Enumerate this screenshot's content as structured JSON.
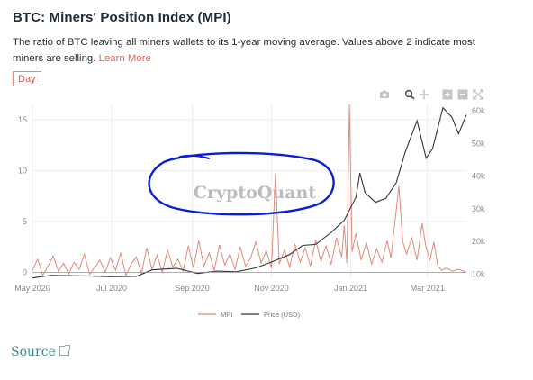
{
  "header": {
    "title": "BTC: Miners' Position Index (MPI)",
    "description": "The ratio of BTC leaving all miners wallets to its 1-year moving average. Values above 2 indicate most miners are selling.",
    "learn_more": "Learn More",
    "interval_button": "Day"
  },
  "toolbar": {
    "icons": [
      "camera-icon",
      "zoom-icon",
      "pan-icon",
      "zoom-in-icon",
      "zoom-out-icon",
      "reset-icon"
    ]
  },
  "watermark": "CryptoQuant",
  "source_link": "Source",
  "colors": {
    "mpi": "#e08a7c",
    "price": "#333333",
    "annotation": "#0a1fd4",
    "grid": "#ededed",
    "axis_text": "#888888"
  },
  "chart_data": {
    "type": "line",
    "title": "BTC: Miners' Position Index (MPI)",
    "x_range": [
      "2020-05-01",
      "2021-03-31"
    ],
    "x_ticks": [
      "May 2020",
      "Jul 2020",
      "Sep 2020",
      "Nov 2020",
      "Jan 2021",
      "Mar 2021"
    ],
    "y_left": {
      "ticks": [
        "0",
        "5",
        "10",
        "15"
      ],
      "range": [
        -0.5,
        16.5
      ]
    },
    "y_right": {
      "ticks": [
        "10k",
        "20k",
        "30k",
        "40k",
        "50k",
        "60k"
      ],
      "range": [
        9000,
        62000
      ]
    },
    "grid": true,
    "legend_position": "bottom",
    "series": [
      {
        "name": "MPI",
        "axis": "left",
        "points": [
          [
            "2020-05-01",
            0.2
          ],
          [
            "2020-05-05",
            1.3
          ],
          [
            "2020-05-09",
            -0.3
          ],
          [
            "2020-05-13",
            0.6
          ],
          [
            "2020-05-17",
            1.6
          ],
          [
            "2020-05-21",
            0.1
          ],
          [
            "2020-05-25",
            0.9
          ],
          [
            "2020-05-29",
            -0.2
          ],
          [
            "2020-06-02",
            1.0
          ],
          [
            "2020-06-06",
            0.3
          ],
          [
            "2020-06-10",
            1.8
          ],
          [
            "2020-06-14",
            -0.2
          ],
          [
            "2020-06-18",
            0.5
          ],
          [
            "2020-06-22",
            1.2
          ],
          [
            "2020-06-26",
            0.0
          ],
          [
            "2020-06-30",
            1.4
          ],
          [
            "2020-07-04",
            0.2
          ],
          [
            "2020-07-08",
            1.9
          ],
          [
            "2020-07-12",
            -0.3
          ],
          [
            "2020-07-16",
            0.8
          ],
          [
            "2020-07-20",
            1.5
          ],
          [
            "2020-07-24",
            -0.1
          ],
          [
            "2020-07-28",
            2.4
          ],
          [
            "2020-08-01",
            0.3
          ],
          [
            "2020-08-05",
            1.7
          ],
          [
            "2020-08-09",
            0.0
          ],
          [
            "2020-08-13",
            2.2
          ],
          [
            "2020-08-17",
            0.5
          ],
          [
            "2020-08-21",
            1.3
          ],
          [
            "2020-08-25",
            0.1
          ],
          [
            "2020-08-29",
            2.6
          ],
          [
            "2020-09-02",
            0.4
          ],
          [
            "2020-09-06",
            3.1
          ],
          [
            "2020-09-10",
            0.6
          ],
          [
            "2020-09-14",
            1.9
          ],
          [
            "2020-09-18",
            0.2
          ],
          [
            "2020-09-22",
            2.7
          ],
          [
            "2020-09-26",
            0.7
          ],
          [
            "2020-09-30",
            1.8
          ],
          [
            "2020-10-04",
            0.3
          ],
          [
            "2020-10-08",
            2.5
          ],
          [
            "2020-10-12",
            0.6
          ],
          [
            "2020-10-16",
            1.4
          ],
          [
            "2020-10-20",
            3.0
          ],
          [
            "2020-10-24",
            0.9
          ],
          [
            "2020-10-28",
            2.1
          ],
          [
            "2020-11-01",
            0.4
          ],
          [
            "2020-11-04",
            9.7
          ],
          [
            "2020-11-07",
            0.8
          ],
          [
            "2020-11-11",
            2.2
          ],
          [
            "2020-11-15",
            0.5
          ],
          [
            "2020-11-19",
            2.8
          ],
          [
            "2020-11-23",
            1.0
          ],
          [
            "2020-11-27",
            2.4
          ],
          [
            "2020-12-01",
            0.6
          ],
          [
            "2020-12-05",
            3.2
          ],
          [
            "2020-12-09",
            1.1
          ],
          [
            "2020-12-13",
            2.6
          ],
          [
            "2020-12-17",
            0.8
          ],
          [
            "2020-12-21",
            3.4
          ],
          [
            "2020-12-25",
            1.5
          ],
          [
            "2020-12-27",
            4.6
          ],
          [
            "2020-12-29",
            0.9
          ],
          [
            "2020-12-31",
            16.5
          ],
          [
            "2021-01-02",
            2.0
          ],
          [
            "2021-01-05",
            3.8
          ],
          [
            "2021-01-09",
            1.2
          ],
          [
            "2021-01-13",
            2.9
          ],
          [
            "2021-01-17",
            0.8
          ],
          [
            "2021-01-21",
            2.3
          ],
          [
            "2021-01-25",
            1.0
          ],
          [
            "2021-01-29",
            3.1
          ],
          [
            "2021-02-01",
            1.4
          ],
          [
            "2021-02-04",
            4.9
          ],
          [
            "2021-02-07",
            8.5
          ],
          [
            "2021-02-10",
            3.0
          ],
          [
            "2021-02-13",
            1.8
          ],
          [
            "2021-02-17",
            3.4
          ],
          [
            "2021-02-21",
            1.2
          ],
          [
            "2021-02-25",
            4.8
          ],
          [
            "2021-02-28",
            2.4
          ],
          [
            "2021-03-03",
            1.2
          ],
          [
            "2021-03-06",
            3.0
          ],
          [
            "2021-03-09",
            0.6
          ],
          [
            "2021-03-12",
            0.2
          ],
          [
            "2021-03-16",
            0.4
          ],
          [
            "2021-03-20",
            0.1
          ],
          [
            "2021-03-25",
            0.3
          ],
          [
            "2021-03-31",
            0.0
          ]
        ]
      },
      {
        "name": "Price (USD)",
        "axis": "right",
        "points": [
          [
            "2020-05-01",
            8800
          ],
          [
            "2020-05-15",
            9600
          ],
          [
            "2020-06-01",
            9500
          ],
          [
            "2020-06-15",
            9400
          ],
          [
            "2020-07-01",
            9200
          ],
          [
            "2020-07-20",
            9300
          ],
          [
            "2020-08-01",
            11300
          ],
          [
            "2020-08-20",
            11800
          ],
          [
            "2020-09-05",
            10200
          ],
          [
            "2020-09-20",
            10900
          ],
          [
            "2020-10-05",
            10700
          ],
          [
            "2020-10-20",
            11900
          ],
          [
            "2020-11-01",
            13700
          ],
          [
            "2020-11-15",
            16000
          ],
          [
            "2020-11-25",
            18800
          ],
          [
            "2020-12-05",
            19100
          ],
          [
            "2020-12-17",
            22800
          ],
          [
            "2020-12-27",
            26500
          ],
          [
            "2021-01-05",
            33500
          ],
          [
            "2021-01-08",
            41000
          ],
          [
            "2021-01-12",
            35000
          ],
          [
            "2021-01-20",
            32000
          ],
          [
            "2021-01-28",
            33200
          ],
          [
            "2021-02-05",
            38000
          ],
          [
            "2021-02-12",
            47500
          ],
          [
            "2021-02-21",
            57000
          ],
          [
            "2021-02-28",
            45500
          ],
          [
            "2021-03-05",
            48500
          ],
          [
            "2021-03-13",
            61000
          ],
          [
            "2021-03-20",
            58000
          ],
          [
            "2021-03-25",
            53000
          ],
          [
            "2021-03-31",
            58800
          ]
        ]
      }
    ]
  }
}
